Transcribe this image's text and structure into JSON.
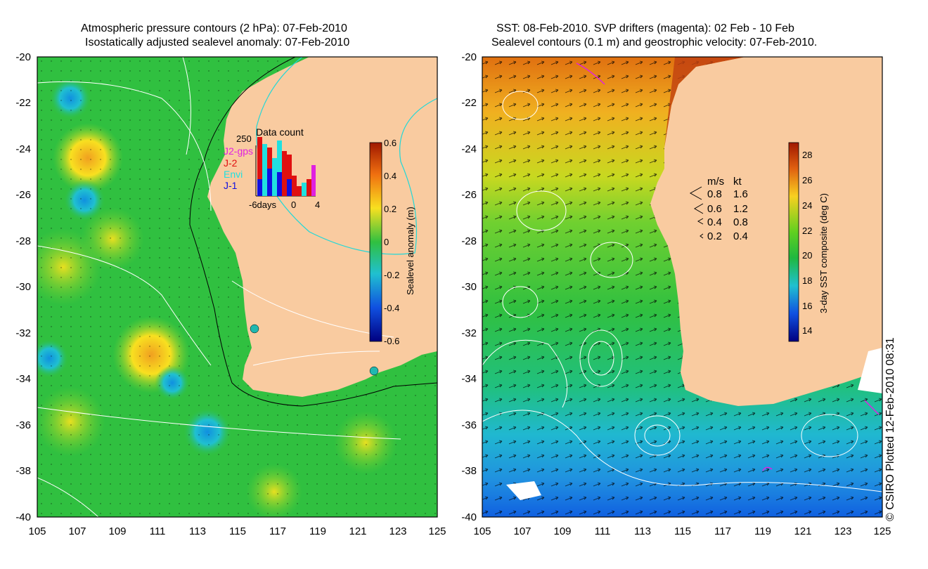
{
  "left_panel": {
    "title_line1": "Atmospheric pressure contours (2 hPa): 07-Feb-2010",
    "title_line2": "Isostatically adjusted sealevel anomaly: 07-Feb-2010",
    "y_ticks": [
      "-20",
      "-22",
      "-24",
      "-26",
      "-28",
      "-30",
      "-32",
      "-34",
      "-36",
      "-38",
      "-40"
    ],
    "x_ticks": [
      "105",
      "107",
      "109",
      "111",
      "113",
      "115",
      "117",
      "119",
      "121",
      "123",
      "125"
    ],
    "colorbar": {
      "label": "Sealevel anomaly (m)",
      "ticks": [
        "0.6",
        "0.4",
        "0.2",
        "0",
        "-0.2",
        "-0.4",
        "-0.6"
      ]
    },
    "inset": {
      "title": "Data count",
      "y_max_label": "250",
      "x_labels": [
        "-6days",
        "0",
        "4"
      ],
      "legend": [
        {
          "name": "J2-gps",
          "color": "#e020e0"
        },
        {
          "name": "J-2",
          "color": "#e01010"
        },
        {
          "name": "Envi",
          "color": "#20e0e0"
        },
        {
          "name": "J-1",
          "color": "#1010e0"
        }
      ]
    }
  },
  "right_panel": {
    "title_line1": "SST: 08-Feb-2010. SVP drifters (magenta): 02 Feb - 10 Feb",
    "title_line2": "Sealevel contours (0.1 m) and geostrophic velocity: 07-Feb-2010.",
    "y_ticks": [
      "-20",
      "-22",
      "-24",
      "-26",
      "-28",
      "-30",
      "-32",
      "-34",
      "-36",
      "-38",
      "-40"
    ],
    "x_ticks": [
      "105",
      "107",
      "109",
      "111",
      "113",
      "115",
      "117",
      "119",
      "121",
      "123",
      "125"
    ],
    "colorbar": {
      "label": "3-day SST composite (deg C)",
      "ticks": [
        "28",
        "26",
        "24",
        "22",
        "20",
        "18",
        "16",
        "14"
      ]
    },
    "velocity_legend": {
      "header_ms": "m/s",
      "header_kt": "kt",
      "rows": [
        {
          "ms": "0.8",
          "kt": "1.6"
        },
        {
          "ms": "0.6",
          "kt": "1.2"
        },
        {
          "ms": "0.4",
          "kt": "0.8"
        },
        {
          "ms": "0.2",
          "kt": "0.4"
        }
      ]
    }
  },
  "copyright": "© CSIRO Plotted 12-Feb-2010 08:31",
  "colors": {
    "land": "#f9cba0",
    "ocean_green": "#30c040",
    "white_contour": "#ffffff",
    "cyan_contour": "#20d8d8",
    "magenta_drifter": "#e020e0"
  }
}
